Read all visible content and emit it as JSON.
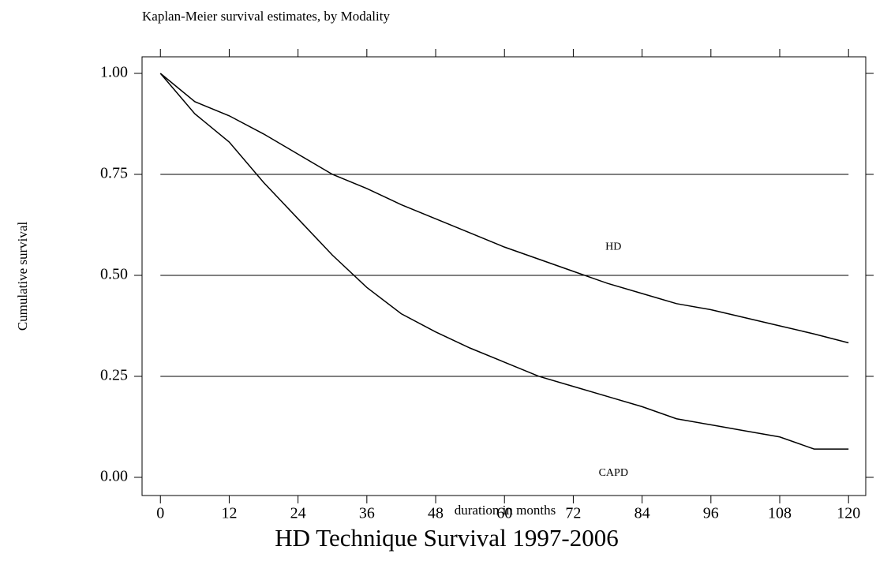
{
  "chart_data": {
    "type": "line",
    "title": "Kaplan-Meier survival estimates, by Modality",
    "caption": "HD Technique Survival 1997-2006",
    "x_label": "duration in months",
    "y_label": "Cumulative survival",
    "x": [
      0,
      6,
      12,
      18,
      24,
      30,
      36,
      42,
      48,
      54,
      60,
      66,
      72,
      78,
      84,
      90,
      96,
      102,
      108,
      114,
      120
    ],
    "series": [
      {
        "name": "HD",
        "color": "#000000",
        "values": [
          1.0,
          0.93,
          0.895,
          0.85,
          0.8,
          0.75,
          0.715,
          0.675,
          0.64,
          0.605,
          0.57,
          0.54,
          0.51,
          0.48,
          0.455,
          0.43,
          0.415,
          0.395,
          0.375,
          0.355,
          0.333
        ]
      },
      {
        "name": "CAPD",
        "color": "#000000",
        "values": [
          1.0,
          0.9,
          0.83,
          0.73,
          0.64,
          0.55,
          0.47,
          0.405,
          0.36,
          0.32,
          0.285,
          0.25,
          0.225,
          0.2,
          0.175,
          0.145,
          0.13,
          0.115,
          0.1,
          0.07,
          0.07
        ]
      }
    ],
    "xlim": [
      -3.2,
      123
    ],
    "ylim": [
      -0.045,
      1.041
    ],
    "xticks": [
      0,
      12,
      24,
      36,
      48,
      60,
      72,
      84,
      96,
      108,
      120
    ],
    "yticks": [
      {
        "value": 0,
        "label": "0.00"
      },
      {
        "value": 0.25,
        "label": "0.25"
      },
      {
        "value": 0.5,
        "label": "0.50"
      },
      {
        "value": 0.75,
        "label": "0.75"
      },
      {
        "value": 1,
        "label": "1.00"
      }
    ],
    "grid": true
  }
}
